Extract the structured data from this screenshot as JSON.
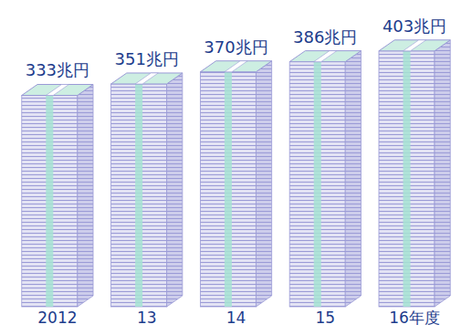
{
  "chart_data": {
    "type": "bar",
    "categories": [
      "2012",
      "13",
      "14",
      "15",
      "16年度"
    ],
    "values": [
      333,
      351,
      370,
      386,
      403
    ],
    "value_labels": [
      "333兆円",
      "351兆円",
      "370兆円",
      "386兆円",
      "403兆円"
    ],
    "color": "#9a9ad6",
    "ylim": [
      0,
      420
    ],
    "data_labels": true,
    "tick_labels": "x"
  }
}
